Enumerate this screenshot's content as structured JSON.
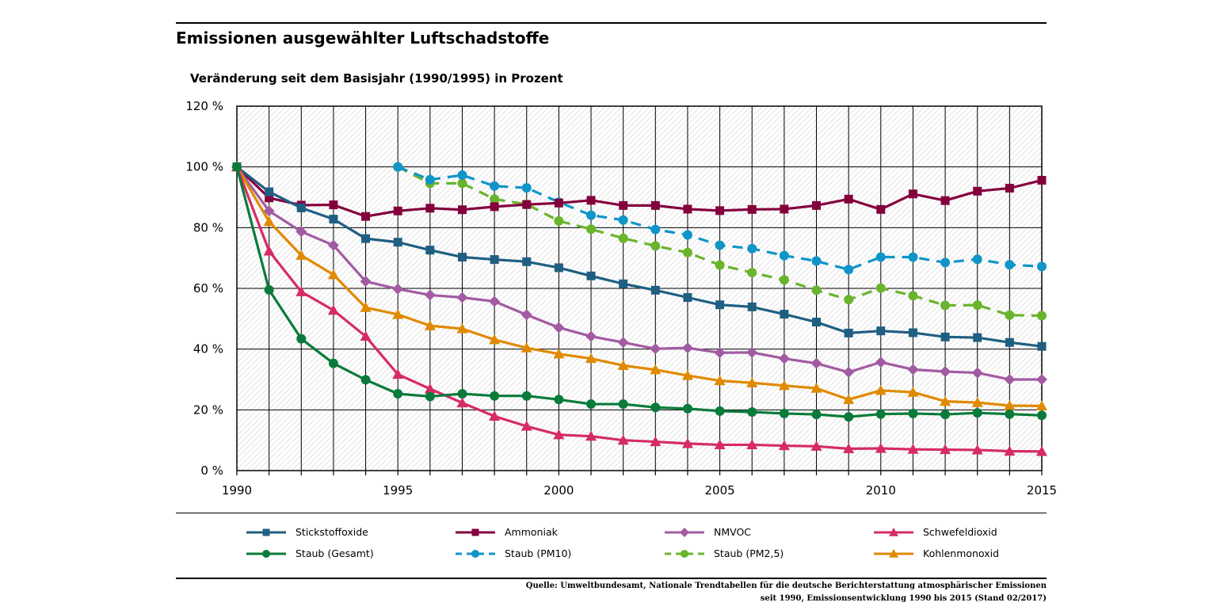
{
  "chart_data": {
    "type": "line",
    "title": "Emissionen ausgewählter Luftschadstoffe",
    "subtitle": "Veränderung seit dem Basisjahr (1990/1995) in Prozent",
    "xlim": [
      1990,
      2015
    ],
    "ylim": [
      0,
      120
    ],
    "x_ticks": [
      "1990",
      "1995",
      "2000",
      "2005",
      "2010",
      "2015"
    ],
    "y_ticks": [
      "0 %",
      "20 %",
      "40 %",
      "60 %",
      "80 %",
      "100 %",
      "120 %"
    ],
    "grid": true,
    "legend_position": "bottom",
    "series": [
      {
        "name": "Stickstoffoxide",
        "color": "#1f5f82",
        "marker": "square",
        "dash": false,
        "start": 1990,
        "values": [
          100,
          91.8,
          86.5,
          82.8,
          76.4,
          75.2,
          72.6,
          70.3,
          69.5,
          68.8,
          66.8,
          64.1,
          61.5,
          59.4,
          57.0,
          54.6,
          53.9,
          51.5,
          48.9,
          45.3,
          46.0,
          45.4,
          44.0,
          43.8,
          42.2,
          40.9
        ]
      },
      {
        "name": "Ammoniak",
        "color": "#84003d",
        "marker": "square",
        "dash": false,
        "start": 1990,
        "values": [
          100,
          89.8,
          87.4,
          87.5,
          83.7,
          85.5,
          86.4,
          85.9,
          86.9,
          87.6,
          88.1,
          89.0,
          87.3,
          87.3,
          86.1,
          85.6,
          86.0,
          86.1,
          87.3,
          89.4,
          86.0,
          91.1,
          88.9,
          92.0,
          93.0,
          95.6
        ]
      },
      {
        "name": "NMVOC",
        "color": "#a25ba2",
        "marker": "diamond",
        "dash": false,
        "start": 1990,
        "values": [
          100,
          85.5,
          78.7,
          74.2,
          62.3,
          59.8,
          57.8,
          57.0,
          55.7,
          51.3,
          47.1,
          44.2,
          42.2,
          40.1,
          40.4,
          38.8,
          38.9,
          36.9,
          35.3,
          32.4,
          35.7,
          33.3,
          32.6,
          32.2,
          30.0,
          30.0
        ]
      },
      {
        "name": "Schwefeldioxid",
        "color": "#d62b66",
        "marker": "triangle",
        "dash": false,
        "start": 1990,
        "values": [
          100,
          72.3,
          58.9,
          52.8,
          44.2,
          31.7,
          26.9,
          22.3,
          17.9,
          14.6,
          11.8,
          11.3,
          10.0,
          9.5,
          8.9,
          8.5,
          8.5,
          8.2,
          8.0,
          7.2,
          7.3,
          7.0,
          6.9,
          6.8,
          6.4,
          6.3
        ]
      },
      {
        "name": "Staub (Gesamt)",
        "color": "#0a7b3a",
        "marker": "circle",
        "dash": false,
        "start": 1990,
        "values": [
          100,
          59.5,
          43.4,
          35.3,
          29.9,
          25.3,
          24.4,
          25.3,
          24.6,
          24.6,
          23.4,
          21.9,
          21.9,
          20.8,
          20.4,
          19.6,
          19.3,
          18.8,
          18.5,
          17.7,
          18.6,
          18.8,
          18.5,
          19.0,
          18.6,
          18.2
        ]
      },
      {
        "name": "Staub (PM10)",
        "color": "#0f95c8",
        "marker": "circle",
        "dash": true,
        "start": 1995,
        "values": [
          100,
          95.8,
          97.3,
          93.7,
          93.1,
          88.4,
          84.1,
          82.5,
          79.4,
          77.6,
          74.2,
          73.1,
          70.8,
          69.0,
          66.2,
          70.3,
          70.3,
          68.5,
          69.6,
          67.8,
          67.2
        ]
      },
      {
        "name": "Staub (PM2,5)",
        "color": "#6ab42d",
        "marker": "circle",
        "dash": true,
        "start": 1995,
        "values": [
          100,
          94.6,
          94.6,
          89.4,
          87.7,
          82.2,
          79.5,
          76.5,
          74.0,
          71.8,
          67.7,
          65.2,
          62.8,
          59.4,
          56.3,
          60.1,
          57.6,
          54.4,
          54.5,
          51.2,
          51.0
        ]
      },
      {
        "name": "Kohlenmonoxid",
        "color": "#e08a00",
        "marker": "triangle",
        "dash": false,
        "start": 1990,
        "values": [
          100,
          82.0,
          70.9,
          64.5,
          53.7,
          51.4,
          47.7,
          46.7,
          43.1,
          40.4,
          38.4,
          36.9,
          34.6,
          33.2,
          31.3,
          29.6,
          28.9,
          28.0,
          27.1,
          23.4,
          26.4,
          25.8,
          22.8,
          22.4,
          21.4,
          21.3
        ]
      }
    ]
  },
  "source_lines": [
    "Quelle: Umweltbundesamt, Nationale Trendtabellen für die deutsche Berichterstattung atmosphärischer Emissionen",
    "seit 1990, Emissionsentwicklung 1990 bis 2015 (Stand 02/2017)"
  ]
}
